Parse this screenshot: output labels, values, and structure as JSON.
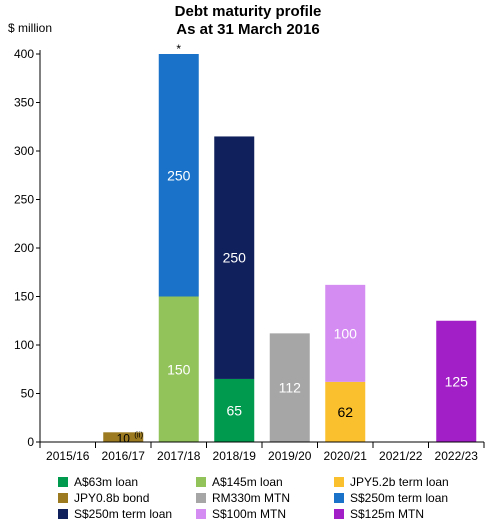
{
  "chart_data": {
    "type": "bar",
    "stacked": true,
    "title": [
      "Debt maturity profile",
      "As at 31 March 2016"
    ],
    "ylabel": "$ million",
    "xlabel": "",
    "ylim": [
      0,
      400
    ],
    "yticks": [
      0,
      50,
      100,
      150,
      200,
      250,
      300,
      350,
      400
    ],
    "grid": false,
    "legend_position": "bottom",
    "categories": [
      "2015/16",
      "2016/17",
      "2017/18",
      "2018/19",
      "2019/20",
      "2020/21",
      "2021/22",
      "2022/23"
    ],
    "series": [
      {
        "name": "A$63m loan",
        "color": "#009a4e",
        "values": [
          0,
          0,
          0,
          65,
          0,
          0,
          0,
          0
        ],
        "labels": [
          "",
          "",
          "",
          "65",
          "",
          "",
          "",
          ""
        ]
      },
      {
        "name": "A$145m loan",
        "color": "#92c35a",
        "values": [
          0,
          0,
          150,
          0,
          0,
          0,
          0,
          0
        ],
        "labels": [
          "",
          "",
          "150",
          "",
          "",
          "",
          "",
          ""
        ]
      },
      {
        "name": "JPY5.2b term loan",
        "color": "#fbc02d",
        "values": [
          0,
          0,
          0,
          0,
          0,
          62,
          0,
          0
        ],
        "labels": [
          "",
          "",
          "",
          "",
          "",
          "62",
          "",
          ""
        ]
      },
      {
        "name": "JPY0.8b bond",
        "color": "#9c7a1f",
        "values": [
          0,
          10,
          0,
          0,
          0,
          0,
          0,
          0
        ],
        "labels": [
          "",
          "10",
          "",
          "",
          "",
          "",
          "",
          ""
        ]
      },
      {
        "name": "RM330m MTN",
        "color": "#a6a6a6",
        "values": [
          0,
          0,
          0,
          0,
          112,
          0,
          0,
          0
        ],
        "labels": [
          "",
          "",
          "",
          "",
          "112",
          "",
          "",
          ""
        ]
      },
      {
        "name": "S$250m term loan",
        "color": "#1a73c9",
        "values": [
          0,
          0,
          250,
          0,
          0,
          0,
          0,
          0
        ],
        "labels": [
          "",
          "",
          "250",
          "",
          "",
          "",
          "",
          ""
        ]
      },
      {
        "name": "S$250m term loan",
        "color": "#10205c",
        "values": [
          0,
          0,
          0,
          250,
          0,
          0,
          0,
          0
        ],
        "labels": [
          "",
          "",
          "",
          "250",
          "",
          "",
          "",
          ""
        ]
      },
      {
        "name": "S$100m MTN",
        "color": "#d48cf2",
        "values": [
          0,
          0,
          0,
          0,
          0,
          100,
          0,
          0
        ],
        "labels": [
          "",
          "",
          "",
          "",
          "",
          "100",
          "",
          ""
        ]
      },
      {
        "name": "S$125m MTN",
        "color": "#a21fc7",
        "values": [
          0,
          0,
          0,
          0,
          0,
          0,
          0,
          125
        ],
        "labels": [
          "",
          "",
          "",
          "",
          "",
          "",
          "",
          "125"
        ]
      }
    ],
    "label_colors": {
      "dark": "#000000",
      "light": "#ffffff"
    },
    "annotations": [
      {
        "category": "2016/17",
        "text": "(ii)",
        "placement": "superscript-of-label"
      },
      {
        "category": "2017/18",
        "text": "*",
        "placement": "above-bar"
      }
    ]
  }
}
